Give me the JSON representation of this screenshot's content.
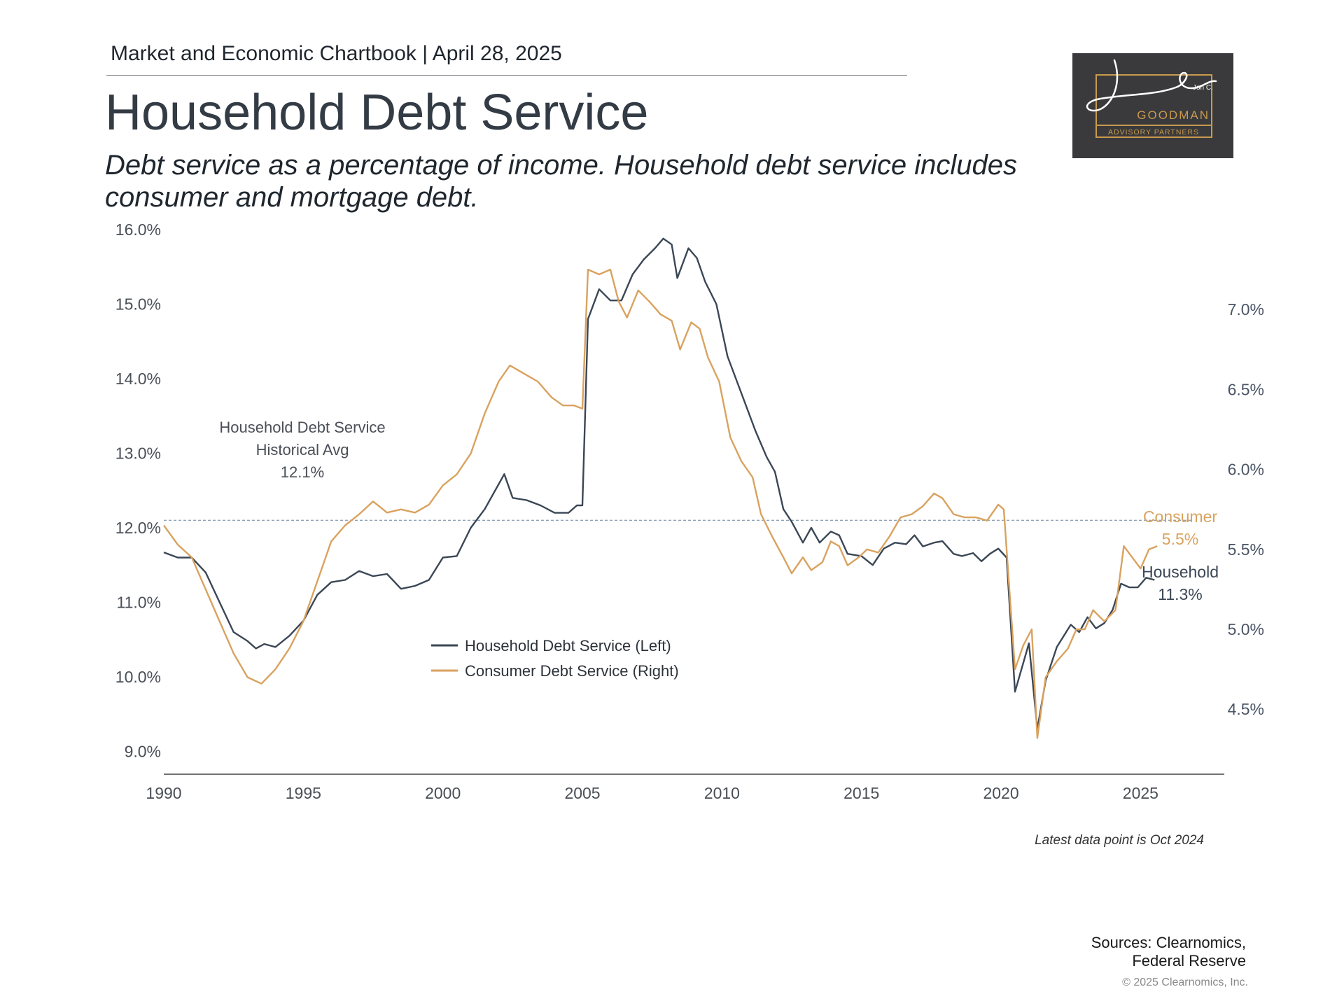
{
  "header": {
    "chartbook": "Market and Economic Chartbook | April 28, 2025",
    "title": "Household Debt Service",
    "subtitle_line1": "Debt service as a percentage of income. Household debt service includes",
    "subtitle_line2": "consumer and mortgage debt."
  },
  "logo": {
    "signature": "Jon C.",
    "name": "GOODMAN",
    "tagline": "ADVISORY PARTNERS",
    "background": "#3a3a3c",
    "accent": "#c99a4e"
  },
  "footer": {
    "latest_note": "Latest data point is Oct 2024",
    "sources_line1": "Sources: Clearnomics,",
    "sources_line2": "Federal Reserve",
    "copyright": "© 2025 Clearnomics, Inc."
  },
  "chart_data": {
    "type": "line",
    "title": "Household Debt Service",
    "xlim": [
      1990,
      2028
    ],
    "x_ticks": [
      "1990",
      "1995",
      "2000",
      "2005",
      "2010",
      "2015",
      "2020",
      "2025"
    ],
    "y_left": {
      "range": [
        8.75,
        16.0
      ],
      "ticks": [
        9.0,
        10.0,
        11.0,
        12.0,
        13.0,
        14.0,
        15.0,
        16.0
      ],
      "tick_labels": [
        "9.0%",
        "10.0%",
        "11.0%",
        "12.0%",
        "13.0%",
        "14.0%",
        "15.0%",
        "16.0%"
      ]
    },
    "y_right": {
      "range": [
        4.12,
        7.5
      ],
      "ticks": [
        4.5,
        5.0,
        5.5,
        6.0,
        6.5,
        7.0
      ],
      "tick_labels": [
        "4.5%",
        "5.0%",
        "5.5%",
        "6.0%",
        "6.5%",
        "7.0%"
      ]
    },
    "reference_line": {
      "value": 12.1,
      "axis": "left",
      "label_lines": [
        "Household Debt Service",
        "Historical Avg",
        "12.1%"
      ]
    },
    "legend": {
      "placement": "center-left",
      "entries": [
        "Household Debt Service (Left)",
        "Consumer Debt Service (Right)"
      ]
    },
    "series": [
      {
        "name": "Household Debt Service (Left)",
        "axis": "left",
        "color": "#3b4756",
        "end_label": [
          "Household",
          "11.3%"
        ],
        "points": [
          [
            1990.0,
            11.67
          ],
          [
            1990.5,
            11.6
          ],
          [
            1991.0,
            11.6
          ],
          [
            1991.5,
            11.4
          ],
          [
            1992.0,
            11.0
          ],
          [
            1992.5,
            10.6
          ],
          [
            1993.0,
            10.48
          ],
          [
            1993.3,
            10.38
          ],
          [
            1993.6,
            10.44
          ],
          [
            1994.0,
            10.4
          ],
          [
            1994.5,
            10.55
          ],
          [
            1995.0,
            10.75
          ],
          [
            1995.5,
            11.1
          ],
          [
            1996.0,
            11.27
          ],
          [
            1996.5,
            11.3
          ],
          [
            1997.0,
            11.42
          ],
          [
            1997.5,
            11.35
          ],
          [
            1998.0,
            11.38
          ],
          [
            1998.5,
            11.18
          ],
          [
            1999.0,
            11.22
          ],
          [
            1999.5,
            11.3
          ],
          [
            2000.0,
            11.6
          ],
          [
            2000.5,
            11.62
          ],
          [
            2001.0,
            12.0
          ],
          [
            2001.5,
            12.25
          ],
          [
            2001.8,
            12.45
          ],
          [
            2002.2,
            12.72
          ],
          [
            2002.5,
            12.4
          ],
          [
            2003.0,
            12.37
          ],
          [
            2003.5,
            12.3
          ],
          [
            2004.0,
            12.2
          ],
          [
            2004.5,
            12.2
          ],
          [
            2004.8,
            12.3
          ],
          [
            2005.0,
            12.3
          ],
          [
            2005.2,
            14.8
          ],
          [
            2005.6,
            15.2
          ],
          [
            2006.0,
            15.05
          ],
          [
            2006.4,
            15.05
          ],
          [
            2006.8,
            15.4
          ],
          [
            2007.2,
            15.6
          ],
          [
            2007.6,
            15.75
          ],
          [
            2007.9,
            15.88
          ],
          [
            2008.2,
            15.8
          ],
          [
            2008.4,
            15.35
          ],
          [
            2008.8,
            15.75
          ],
          [
            2009.1,
            15.62
          ],
          [
            2009.4,
            15.3
          ],
          [
            2009.8,
            15.0
          ],
          [
            2010.2,
            14.3
          ],
          [
            2010.5,
            14.0
          ],
          [
            2010.8,
            13.7
          ],
          [
            2011.2,
            13.3
          ],
          [
            2011.6,
            12.95
          ],
          [
            2011.9,
            12.75
          ],
          [
            2012.2,
            12.25
          ],
          [
            2012.5,
            12.08
          ],
          [
            2012.9,
            11.8
          ],
          [
            2013.2,
            12.0
          ],
          [
            2013.5,
            11.8
          ],
          [
            2013.9,
            11.95
          ],
          [
            2014.2,
            11.9
          ],
          [
            2014.5,
            11.65
          ],
          [
            2015.0,
            11.62
          ],
          [
            2015.4,
            11.5
          ],
          [
            2015.8,
            11.72
          ],
          [
            2016.2,
            11.8
          ],
          [
            2016.6,
            11.78
          ],
          [
            2016.9,
            11.9
          ],
          [
            2017.2,
            11.75
          ],
          [
            2017.6,
            11.8
          ],
          [
            2017.9,
            11.82
          ],
          [
            2018.3,
            11.65
          ],
          [
            2018.6,
            11.62
          ],
          [
            2019.0,
            11.66
          ],
          [
            2019.3,
            11.55
          ],
          [
            2019.6,
            11.65
          ],
          [
            2019.9,
            11.72
          ],
          [
            2020.2,
            11.6
          ],
          [
            2020.5,
            9.8
          ],
          [
            2021.0,
            10.45
          ],
          [
            2021.3,
            9.3
          ],
          [
            2021.6,
            9.95
          ],
          [
            2022.0,
            10.4
          ],
          [
            2022.5,
            10.7
          ],
          [
            2022.8,
            10.6
          ],
          [
            2023.1,
            10.8
          ],
          [
            2023.4,
            10.65
          ],
          [
            2023.7,
            10.72
          ],
          [
            2024.0,
            10.9
          ],
          [
            2024.3,
            11.25
          ],
          [
            2024.6,
            11.2
          ],
          [
            2024.9,
            11.2
          ],
          [
            2025.2,
            11.33
          ],
          [
            2025.5,
            11.3
          ]
        ]
      },
      {
        "name": "Consumer Debt Service (Right)",
        "axis": "right",
        "color": "#d9a25f",
        "end_label": [
          "Consumer",
          "5.5%"
        ],
        "points": [
          [
            1990.0,
            5.65
          ],
          [
            1990.5,
            5.53
          ],
          [
            1991.0,
            5.45
          ],
          [
            1991.5,
            5.25
          ],
          [
            1992.0,
            5.05
          ],
          [
            1992.5,
            4.85
          ],
          [
            1993.0,
            4.7
          ],
          [
            1993.5,
            4.66
          ],
          [
            1994.0,
            4.75
          ],
          [
            1994.5,
            4.88
          ],
          [
            1995.0,
            5.05
          ],
          [
            1995.5,
            5.3
          ],
          [
            1996.0,
            5.55
          ],
          [
            1996.5,
            5.65
          ],
          [
            1997.0,
            5.72
          ],
          [
            1997.5,
            5.8
          ],
          [
            1998.0,
            5.73
          ],
          [
            1998.5,
            5.75
          ],
          [
            1999.0,
            5.73
          ],
          [
            1999.5,
            5.78
          ],
          [
            2000.0,
            5.9
          ],
          [
            2000.5,
            5.97
          ],
          [
            2001.0,
            6.1
          ],
          [
            2001.5,
            6.35
          ],
          [
            2002.0,
            6.55
          ],
          [
            2002.4,
            6.65
          ],
          [
            2002.9,
            6.6
          ],
          [
            2003.4,
            6.55
          ],
          [
            2003.9,
            6.45
          ],
          [
            2004.3,
            6.4
          ],
          [
            2004.7,
            6.4
          ],
          [
            2005.0,
            6.38
          ],
          [
            2005.2,
            7.25
          ],
          [
            2005.6,
            7.22
          ],
          [
            2006.0,
            7.25
          ],
          [
            2006.3,
            7.05
          ],
          [
            2006.6,
            6.95
          ],
          [
            2007.0,
            7.12
          ],
          [
            2007.4,
            7.05
          ],
          [
            2007.8,
            6.97
          ],
          [
            2008.2,
            6.93
          ],
          [
            2008.5,
            6.75
          ],
          [
            2008.9,
            6.92
          ],
          [
            2009.2,
            6.88
          ],
          [
            2009.5,
            6.7
          ],
          [
            2009.9,
            6.55
          ],
          [
            2010.3,
            6.2
          ],
          [
            2010.7,
            6.05
          ],
          [
            2011.1,
            5.95
          ],
          [
            2011.4,
            5.72
          ],
          [
            2011.8,
            5.58
          ],
          [
            2012.2,
            5.45
          ],
          [
            2012.5,
            5.35
          ],
          [
            2012.9,
            5.45
          ],
          [
            2013.2,
            5.37
          ],
          [
            2013.6,
            5.42
          ],
          [
            2013.9,
            5.55
          ],
          [
            2014.2,
            5.52
          ],
          [
            2014.5,
            5.4
          ],
          [
            2014.9,
            5.45
          ],
          [
            2015.2,
            5.5
          ],
          [
            2015.6,
            5.48
          ],
          [
            2016.0,
            5.58
          ],
          [
            2016.4,
            5.7
          ],
          [
            2016.8,
            5.72
          ],
          [
            2017.2,
            5.77
          ],
          [
            2017.6,
            5.85
          ],
          [
            2017.9,
            5.82
          ],
          [
            2018.3,
            5.72
          ],
          [
            2018.7,
            5.7
          ],
          [
            2019.1,
            5.7
          ],
          [
            2019.5,
            5.68
          ],
          [
            2019.9,
            5.78
          ],
          [
            2020.1,
            5.75
          ],
          [
            2020.5,
            4.75
          ],
          [
            2020.8,
            4.9
          ],
          [
            2021.1,
            5.0
          ],
          [
            2021.3,
            4.32
          ],
          [
            2021.6,
            4.7
          ],
          [
            2022.0,
            4.8
          ],
          [
            2022.4,
            4.88
          ],
          [
            2022.7,
            5.0
          ],
          [
            2023.0,
            5.0
          ],
          [
            2023.3,
            5.12
          ],
          [
            2023.7,
            5.05
          ],
          [
            2024.1,
            5.12
          ],
          [
            2024.4,
            5.52
          ],
          [
            2024.7,
            5.45
          ],
          [
            2025.0,
            5.38
          ],
          [
            2025.3,
            5.5
          ],
          [
            2025.6,
            5.52
          ]
        ]
      }
    ]
  }
}
